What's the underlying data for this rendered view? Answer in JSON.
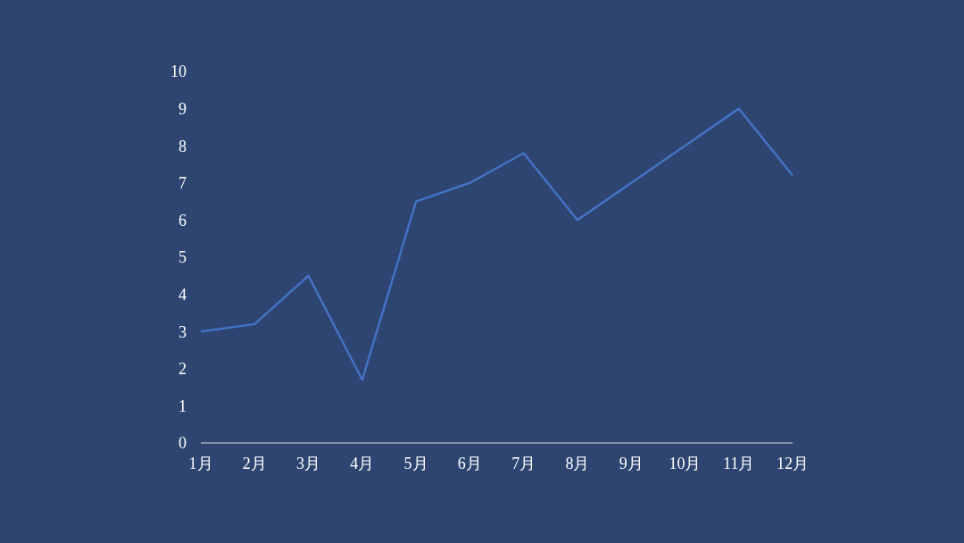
{
  "chart_data": {
    "type": "line",
    "categories": [
      "1月",
      "2月",
      "3月",
      "4月",
      "5月",
      "6月",
      "7月",
      "8月",
      "9月",
      "10月",
      "11月",
      "12月"
    ],
    "series": [
      {
        "color": "#4472c4",
        "values": [
          3,
          3.2,
          4.5,
          1.7,
          6.5,
          7,
          7.8,
          6,
          7,
          8,
          9,
          7.2
        ]
      }
    ],
    "ylim": [
      0,
      10
    ],
    "yticks": [
      0,
      1,
      2,
      3,
      4,
      5,
      6,
      7,
      8,
      9,
      10
    ],
    "grid": false,
    "legend": false,
    "marker": "none",
    "line_style": "solid"
  }
}
